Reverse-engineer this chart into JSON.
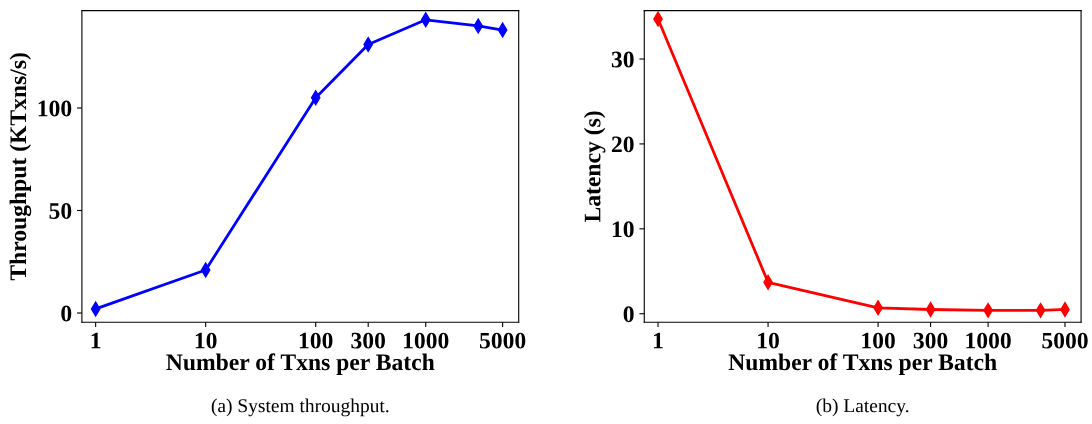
{
  "chart_data": [
    {
      "type": "line",
      "xlabel": "Number of Txns per Batch",
      "ylabel": "Throughput (KTxns/s)",
      "x": [
        1,
        10,
        100,
        300,
        1000,
        3000,
        5000
      ],
      "log": "x",
      "xlim": [
        0.75,
        7000
      ],
      "xticks": [
        1,
        10,
        100,
        300,
        1000,
        5000
      ],
      "ylim": [
        -4.5,
        147.5
      ],
      "yticks": [
        0,
        50,
        100
      ],
      "marker": "diamond",
      "line_style": "solid",
      "grid": false,
      "legend": false,
      "annotations": [
        "(a) System throughput."
      ],
      "series": [
        {
          "color": "#0000ff",
          "values": [
            2,
            21,
            105,
            131,
            143,
            140,
            138
          ]
        }
      ]
    },
    {
      "type": "line",
      "xlabel": "Number of Txns per Batch",
      "ylabel": "Latency (s)",
      "x": [
        1,
        10,
        100,
        300,
        1000,
        3000,
        5000
      ],
      "log": "x",
      "xlim": [
        0.75,
        7000
      ],
      "xticks": [
        1,
        10,
        100,
        300,
        1000,
        5000
      ],
      "ylim": [
        -1.0,
        35.7
      ],
      "yticks": [
        0,
        10,
        20,
        30
      ],
      "marker": "diamond",
      "line_style": "solid",
      "grid": false,
      "legend": false,
      "annotations": [
        "(b) Latency."
      ],
      "series": [
        {
          "color": "#ff0000",
          "values": [
            34.7,
            3.7,
            0.7,
            0.5,
            0.4,
            0.4,
            0.5
          ]
        }
      ]
    }
  ]
}
